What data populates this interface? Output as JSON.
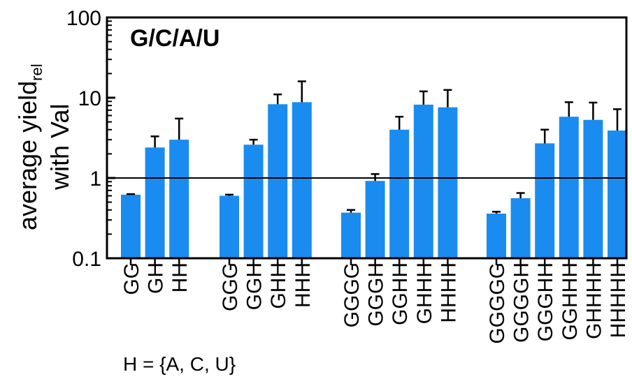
{
  "chart_data": {
    "type": "bar",
    "title": "G/C/A/U",
    "ylabel": {
      "line1_main": "average yield",
      "line1_sub": "rel",
      "line2": "with Val"
    },
    "yscale": "log",
    "ylim": [
      0.1,
      100
    ],
    "yticks": [
      0.1,
      1,
      10,
      100
    ],
    "ytick_labels": [
      "0.1",
      "1",
      "10",
      "100"
    ],
    "reference_line": 1,
    "bar_color": "#1a8cf0",
    "groups": [
      {
        "categories": [
          "GG",
          "GH",
          "HH"
        ],
        "values": [
          0.62,
          2.4,
          3.0
        ],
        "errors": [
          0.63,
          3.3,
          5.5
        ]
      },
      {
        "categories": [
          "GGG",
          "GGH",
          "GHH",
          "HHH"
        ],
        "values": [
          0.6,
          2.6,
          8.3,
          8.8
        ],
        "errors": [
          0.62,
          3.0,
          11.0,
          16.0
        ]
      },
      {
        "categories": [
          "GGGG",
          "GGGH",
          "GGHH",
          "GHHH",
          "HHHH"
        ],
        "values": [
          0.37,
          0.92,
          4.0,
          8.2,
          7.6
        ],
        "errors": [
          0.4,
          1.12,
          5.8,
          12.0,
          12.5
        ]
      },
      {
        "categories": [
          "GGGGG",
          "GGGGH",
          "GGGHH",
          "GGHHH",
          "GHHHH",
          "HHHHH"
        ],
        "values": [
          0.36,
          0.56,
          2.7,
          5.8,
          5.3,
          3.9
        ],
        "errors": [
          0.38,
          0.65,
          4.0,
          8.8,
          8.7,
          7.2
        ]
      }
    ],
    "footnote": "H = {A, C, U}"
  }
}
